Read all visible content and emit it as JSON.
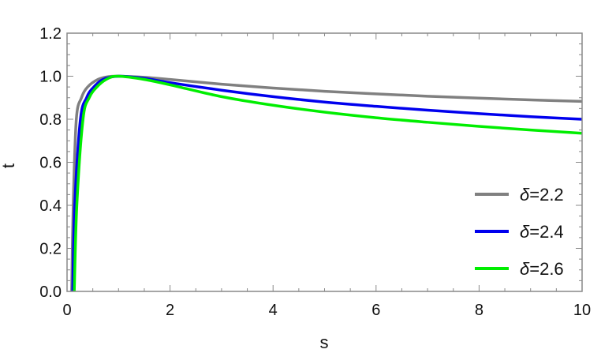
{
  "chart_data": {
    "type": "line",
    "title": "",
    "xlabel": "s",
    "ylabel": "t",
    "xlim": [
      0,
      10
    ],
    "ylim": [
      0,
      1.2
    ],
    "xticks": [
      "0",
      "2",
      "4",
      "6",
      "8",
      "10"
    ],
    "yticks": [
      "0.0",
      "0.2",
      "0.4",
      "0.6",
      "0.8",
      "1.0",
      "1.2"
    ],
    "grid": false,
    "legend_position": "bottom-right",
    "series": [
      {
        "name": "δ=2.2",
        "symbol": "δ",
        "value_text": "=2.2",
        "color": "#808080",
        "points": [
          [
            0.09,
            0
          ],
          [
            0.12,
            0.4
          ],
          [
            0.18,
            0.8
          ],
          [
            0.28,
            0.9
          ],
          [
            0.4,
            0.95
          ],
          [
            0.6,
            0.985
          ],
          [
            0.8,
            0.998
          ],
          [
            1,
            1
          ],
          [
            1.5,
            0.995
          ],
          [
            2,
            0.985
          ],
          [
            3,
            0.963
          ],
          [
            4,
            0.945
          ],
          [
            5,
            0.93
          ],
          [
            6,
            0.918
          ],
          [
            7,
            0.907
          ],
          [
            8,
            0.898
          ],
          [
            9,
            0.89
          ],
          [
            10,
            0.883
          ]
        ]
      },
      {
        "name": "δ=2.4",
        "symbol": "δ",
        "value_text": "=2.4",
        "color": "#0000ee",
        "points": [
          [
            0.11,
            0
          ],
          [
            0.15,
            0.4
          ],
          [
            0.26,
            0.8
          ],
          [
            0.38,
            0.9
          ],
          [
            0.5,
            0.945
          ],
          [
            0.7,
            0.985
          ],
          [
            1,
            1
          ],
          [
            1.5,
            0.99
          ],
          [
            2,
            0.97
          ],
          [
            3,
            0.935
          ],
          [
            4,
            0.905
          ],
          [
            5,
            0.88
          ],
          [
            6,
            0.86
          ],
          [
            7,
            0.842
          ],
          [
            8,
            0.826
          ],
          [
            9,
            0.812
          ],
          [
            10,
            0.8
          ]
        ]
      },
      {
        "name": "δ=2.6",
        "symbol": "δ",
        "value_text": "=2.6",
        "color": "#00ee00",
        "points": [
          [
            0.14,
            0
          ],
          [
            0.19,
            0.4
          ],
          [
            0.31,
            0.8
          ],
          [
            0.43,
            0.9
          ],
          [
            0.6,
            0.955
          ],
          [
            0.8,
            0.99
          ],
          [
            1,
            1
          ],
          [
            1.5,
            0.985
          ],
          [
            2,
            0.96
          ],
          [
            3,
            0.905
          ],
          [
            4,
            0.865
          ],
          [
            5,
            0.833
          ],
          [
            6,
            0.807
          ],
          [
            7,
            0.786
          ],
          [
            8,
            0.767
          ],
          [
            9,
            0.75
          ],
          [
            10,
            0.735
          ]
        ]
      }
    ]
  }
}
